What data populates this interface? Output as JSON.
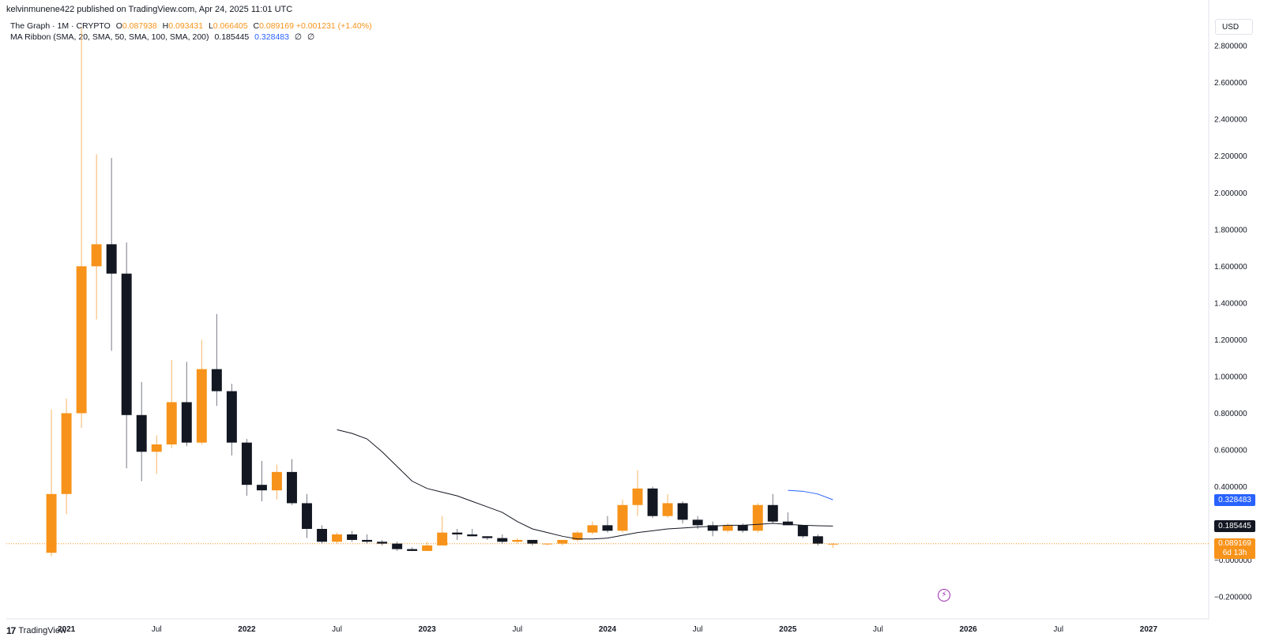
{
  "header": {
    "published_line": "kelvinmunene422 published on TradingView.com, Apr 24, 2025 11:01 UTC"
  },
  "legend": {
    "symbol": "The Graph · 1M · CRYPTO",
    "o_label": "O",
    "o_value": "0.087938",
    "h_label": "H",
    "h_value": "0.093431",
    "l_label": "L",
    "l_value": "0.066405",
    "c_label": "C",
    "c_value": "0.089169",
    "change": "+0.001231 (+1.40%)",
    "indicator": "MA Ribbon (SMA, 20, SMA, 50, SMA, 100, SMA, 200)",
    "ma1_value": "0.185445",
    "ma2_value": "0.328483",
    "ma3_value": "∅",
    "ma4_value": "∅"
  },
  "currency_button": "USD",
  "footer": {
    "brand_mark": "17",
    "brand": "TradingView"
  },
  "price_labels": {
    "ma2": "0.328483",
    "ma1": "0.185445",
    "last_price": "0.089169",
    "countdown": "6d 13h"
  },
  "colors": {
    "up": "#f7931a",
    "down": "#131722",
    "ma1": "#131722",
    "ma2": "#2962ff",
    "flash": "#9c27b0"
  },
  "icons": {
    "flash": "lightning-icon"
  },
  "chart_data": {
    "type": "candlestick",
    "interval": "1M",
    "y_ticks": [
      "2.800000",
      "2.600000",
      "2.400000",
      "2.200000",
      "2.000000",
      "1.800000",
      "1.600000",
      "1.400000",
      "1.200000",
      "1.000000",
      "0.800000",
      "0.600000",
      "0.400000",
      "−0.000000",
      "−0.200000"
    ],
    "y_tick_values": [
      2.8,
      2.6,
      2.4,
      2.2,
      2.0,
      1.8,
      1.6,
      1.4,
      1.2,
      1.0,
      0.8,
      0.6,
      0.4,
      0.0,
      -0.2
    ],
    "ylim": [
      -0.32,
      3.05
    ],
    "x_ticks": [
      "2021",
      "Jul",
      "2022",
      "Jul",
      "2023",
      "Jul",
      "2024",
      "Jul",
      "2025",
      "Jul",
      "2026",
      "Jul",
      "2027"
    ],
    "x_tick_months": [
      "2021-01",
      "2021-07",
      "2022-01",
      "2022-07",
      "2023-01",
      "2023-07",
      "2024-01",
      "2024-07",
      "2025-01",
      "2025-07",
      "2026-01",
      "2026-07",
      "2027-01"
    ],
    "xlim": [
      "2020-09",
      "2027-05"
    ],
    "candles": [
      {
        "t": "2020-12",
        "o": 0.04,
        "h": 0.82,
        "l": 0.02,
        "c": 0.36
      },
      {
        "t": "2021-01",
        "o": 0.36,
        "h": 0.88,
        "l": 0.25,
        "c": 0.8
      },
      {
        "t": "2021-02",
        "o": 0.8,
        "h": 2.9,
        "l": 0.72,
        "c": 1.6
      },
      {
        "t": "2021-03",
        "o": 1.6,
        "h": 2.21,
        "l": 1.31,
        "c": 1.72
      },
      {
        "t": "2021-04",
        "o": 1.72,
        "h": 2.19,
        "l": 1.14,
        "c": 1.56
      },
      {
        "t": "2021-05",
        "o": 1.56,
        "h": 1.73,
        "l": 0.5,
        "c": 0.79
      },
      {
        "t": "2021-06",
        "o": 0.79,
        "h": 0.97,
        "l": 0.43,
        "c": 0.59
      },
      {
        "t": "2021-07",
        "o": 0.59,
        "h": 0.68,
        "l": 0.47,
        "c": 0.63
      },
      {
        "t": "2021-08",
        "o": 0.63,
        "h": 1.09,
        "l": 0.61,
        "c": 0.86
      },
      {
        "t": "2021-09",
        "o": 0.86,
        "h": 1.08,
        "l": 0.62,
        "c": 0.64
      },
      {
        "t": "2021-10",
        "o": 0.64,
        "h": 1.2,
        "l": 0.63,
        "c": 1.04
      },
      {
        "t": "2021-11",
        "o": 1.04,
        "h": 1.34,
        "l": 0.84,
        "c": 0.92
      },
      {
        "t": "2021-12",
        "o": 0.92,
        "h": 0.96,
        "l": 0.57,
        "c": 0.64
      },
      {
        "t": "2022-01",
        "o": 0.64,
        "h": 0.66,
        "l": 0.35,
        "c": 0.41
      },
      {
        "t": "2022-02",
        "o": 0.41,
        "h": 0.54,
        "l": 0.32,
        "c": 0.38
      },
      {
        "t": "2022-03",
        "o": 0.38,
        "h": 0.52,
        "l": 0.33,
        "c": 0.48
      },
      {
        "t": "2022-04",
        "o": 0.48,
        "h": 0.55,
        "l": 0.3,
        "c": 0.31
      },
      {
        "t": "2022-05",
        "o": 0.31,
        "h": 0.36,
        "l": 0.12,
        "c": 0.17
      },
      {
        "t": "2022-06",
        "o": 0.17,
        "h": 0.19,
        "l": 0.09,
        "c": 0.1
      },
      {
        "t": "2022-07",
        "o": 0.1,
        "h": 0.15,
        "l": 0.09,
        "c": 0.14
      },
      {
        "t": "2022-08",
        "o": 0.14,
        "h": 0.16,
        "l": 0.1,
        "c": 0.11
      },
      {
        "t": "2022-09",
        "o": 0.11,
        "h": 0.14,
        "l": 0.09,
        "c": 0.1
      },
      {
        "t": "2022-10",
        "o": 0.1,
        "h": 0.11,
        "l": 0.08,
        "c": 0.09
      },
      {
        "t": "2022-11",
        "o": 0.09,
        "h": 0.1,
        "l": 0.05,
        "c": 0.06
      },
      {
        "t": "2022-12",
        "o": 0.06,
        "h": 0.07,
        "l": 0.05,
        "c": 0.05
      },
      {
        "t": "2023-01",
        "o": 0.05,
        "h": 0.1,
        "l": 0.05,
        "c": 0.08
      },
      {
        "t": "2023-02",
        "o": 0.08,
        "h": 0.24,
        "l": 0.08,
        "c": 0.15
      },
      {
        "t": "2023-03",
        "o": 0.15,
        "h": 0.17,
        "l": 0.11,
        "c": 0.14
      },
      {
        "t": "2023-04",
        "o": 0.14,
        "h": 0.17,
        "l": 0.13,
        "c": 0.13
      },
      {
        "t": "2023-05",
        "o": 0.13,
        "h": 0.13,
        "l": 0.11,
        "c": 0.12
      },
      {
        "t": "2023-06",
        "o": 0.12,
        "h": 0.14,
        "l": 0.09,
        "c": 0.1
      },
      {
        "t": "2023-07",
        "o": 0.1,
        "h": 0.12,
        "l": 0.09,
        "c": 0.11
      },
      {
        "t": "2023-08",
        "o": 0.11,
        "h": 0.11,
        "l": 0.08,
        "c": 0.09
      },
      {
        "t": "2023-09",
        "o": 0.09,
        "h": 0.09,
        "l": 0.08,
        "c": 0.09
      },
      {
        "t": "2023-10",
        "o": 0.09,
        "h": 0.11,
        "l": 0.08,
        "c": 0.11
      },
      {
        "t": "2023-11",
        "o": 0.11,
        "h": 0.16,
        "l": 0.1,
        "c": 0.15
      },
      {
        "t": "2023-12",
        "o": 0.15,
        "h": 0.21,
        "l": 0.14,
        "c": 0.19
      },
      {
        "t": "2024-01",
        "o": 0.19,
        "h": 0.24,
        "l": 0.15,
        "c": 0.16
      },
      {
        "t": "2024-02",
        "o": 0.16,
        "h": 0.33,
        "l": 0.15,
        "c": 0.3
      },
      {
        "t": "2024-03",
        "o": 0.3,
        "h": 0.49,
        "l": 0.24,
        "c": 0.39
      },
      {
        "t": "2024-04",
        "o": 0.39,
        "h": 0.4,
        "l": 0.23,
        "c": 0.24
      },
      {
        "t": "2024-05",
        "o": 0.24,
        "h": 0.36,
        "l": 0.23,
        "c": 0.31
      },
      {
        "t": "2024-06",
        "o": 0.31,
        "h": 0.32,
        "l": 0.2,
        "c": 0.22
      },
      {
        "t": "2024-07",
        "o": 0.22,
        "h": 0.24,
        "l": 0.17,
        "c": 0.19
      },
      {
        "t": "2024-08",
        "o": 0.19,
        "h": 0.21,
        "l": 0.13,
        "c": 0.16
      },
      {
        "t": "2024-09",
        "o": 0.16,
        "h": 0.2,
        "l": 0.15,
        "c": 0.19
      },
      {
        "t": "2024-10",
        "o": 0.19,
        "h": 0.2,
        "l": 0.15,
        "c": 0.16
      },
      {
        "t": "2024-11",
        "o": 0.16,
        "h": 0.31,
        "l": 0.15,
        "c": 0.3
      },
      {
        "t": "2024-12",
        "o": 0.3,
        "h": 0.36,
        "l": 0.2,
        "c": 0.21
      },
      {
        "t": "2025-01",
        "o": 0.21,
        "h": 0.26,
        "l": 0.19,
        "c": 0.19
      },
      {
        "t": "2025-02",
        "o": 0.19,
        "h": 0.19,
        "l": 0.12,
        "c": 0.13
      },
      {
        "t": "2025-03",
        "o": 0.13,
        "h": 0.14,
        "l": 0.08,
        "c": 0.09
      },
      {
        "t": "2025-04",
        "o": 0.087938,
        "h": 0.093431,
        "l": 0.066405,
        "c": 0.089169
      }
    ],
    "ma_series": [
      {
        "period": 20,
        "values": [
          {
            "t": "2022-07",
            "v": 0.71
          },
          {
            "t": "2022-08",
            "v": 0.69
          },
          {
            "t": "2022-09",
            "v": 0.66
          },
          {
            "t": "2022-10",
            "v": 0.59
          },
          {
            "t": "2022-11",
            "v": 0.51
          },
          {
            "t": "2022-12",
            "v": 0.43
          },
          {
            "t": "2023-01",
            "v": 0.39
          },
          {
            "t": "2023-02",
            "v": 0.37
          },
          {
            "t": "2023-03",
            "v": 0.35
          },
          {
            "t": "2023-04",
            "v": 0.32
          },
          {
            "t": "2023-05",
            "v": 0.29
          },
          {
            "t": "2023-06",
            "v": 0.26
          },
          {
            "t": "2023-07",
            "v": 0.21
          },
          {
            "t": "2023-08",
            "v": 0.17
          },
          {
            "t": "2023-09",
            "v": 0.15
          },
          {
            "t": "2023-10",
            "v": 0.13
          },
          {
            "t": "2023-11",
            "v": 0.115
          },
          {
            "t": "2023-12",
            "v": 0.115
          },
          {
            "t": "2024-01",
            "v": 0.12
          },
          {
            "t": "2024-02",
            "v": 0.135
          },
          {
            "t": "2024-03",
            "v": 0.15
          },
          {
            "t": "2024-04",
            "v": 0.16
          },
          {
            "t": "2024-05",
            "v": 0.17
          },
          {
            "t": "2024-06",
            "v": 0.175
          },
          {
            "t": "2024-07",
            "v": 0.18
          },
          {
            "t": "2024-08",
            "v": 0.185
          },
          {
            "t": "2024-09",
            "v": 0.19
          },
          {
            "t": "2024-10",
            "v": 0.19
          },
          {
            "t": "2024-11",
            "v": 0.195
          },
          {
            "t": "2024-12",
            "v": 0.2
          },
          {
            "t": "2025-01",
            "v": 0.195
          },
          {
            "t": "2025-02",
            "v": 0.19
          },
          {
            "t": "2025-03",
            "v": 0.187
          },
          {
            "t": "2025-04",
            "v": 0.185445
          }
        ]
      },
      {
        "period": 50,
        "values": [
          {
            "t": "2025-01",
            "v": 0.38
          },
          {
            "t": "2025-02",
            "v": 0.375
          },
          {
            "t": "2025-03",
            "v": 0.36
          },
          {
            "t": "2025-04",
            "v": 0.328483
          }
        ]
      }
    ],
    "last_price": 0.089169
  }
}
